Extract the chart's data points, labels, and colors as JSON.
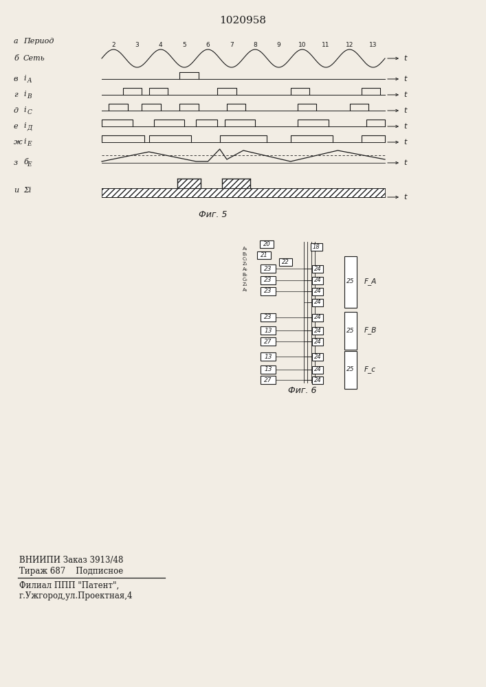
{
  "title_number": "1020958",
  "fig5_label": "Фиг. 5",
  "fig6_label": "Фиг. 6",
  "footer_text1": "ВНИИПИ Заказ 3913/48",
  "footer_text2": "Тираж 687    Подписное",
  "footer_text3": "Филиал ППП \"Патент\",",
  "footer_text4": "г.Ужгород,ул.Проектная,4",
  "bg_color": "#f2ede4",
  "line_color": "#1a1a1a",
  "period_numbers": [
    "2",
    "3",
    "4",
    "5",
    "6",
    "7",
    "8",
    "9",
    "10",
    "11",
    "12",
    "13"
  ]
}
